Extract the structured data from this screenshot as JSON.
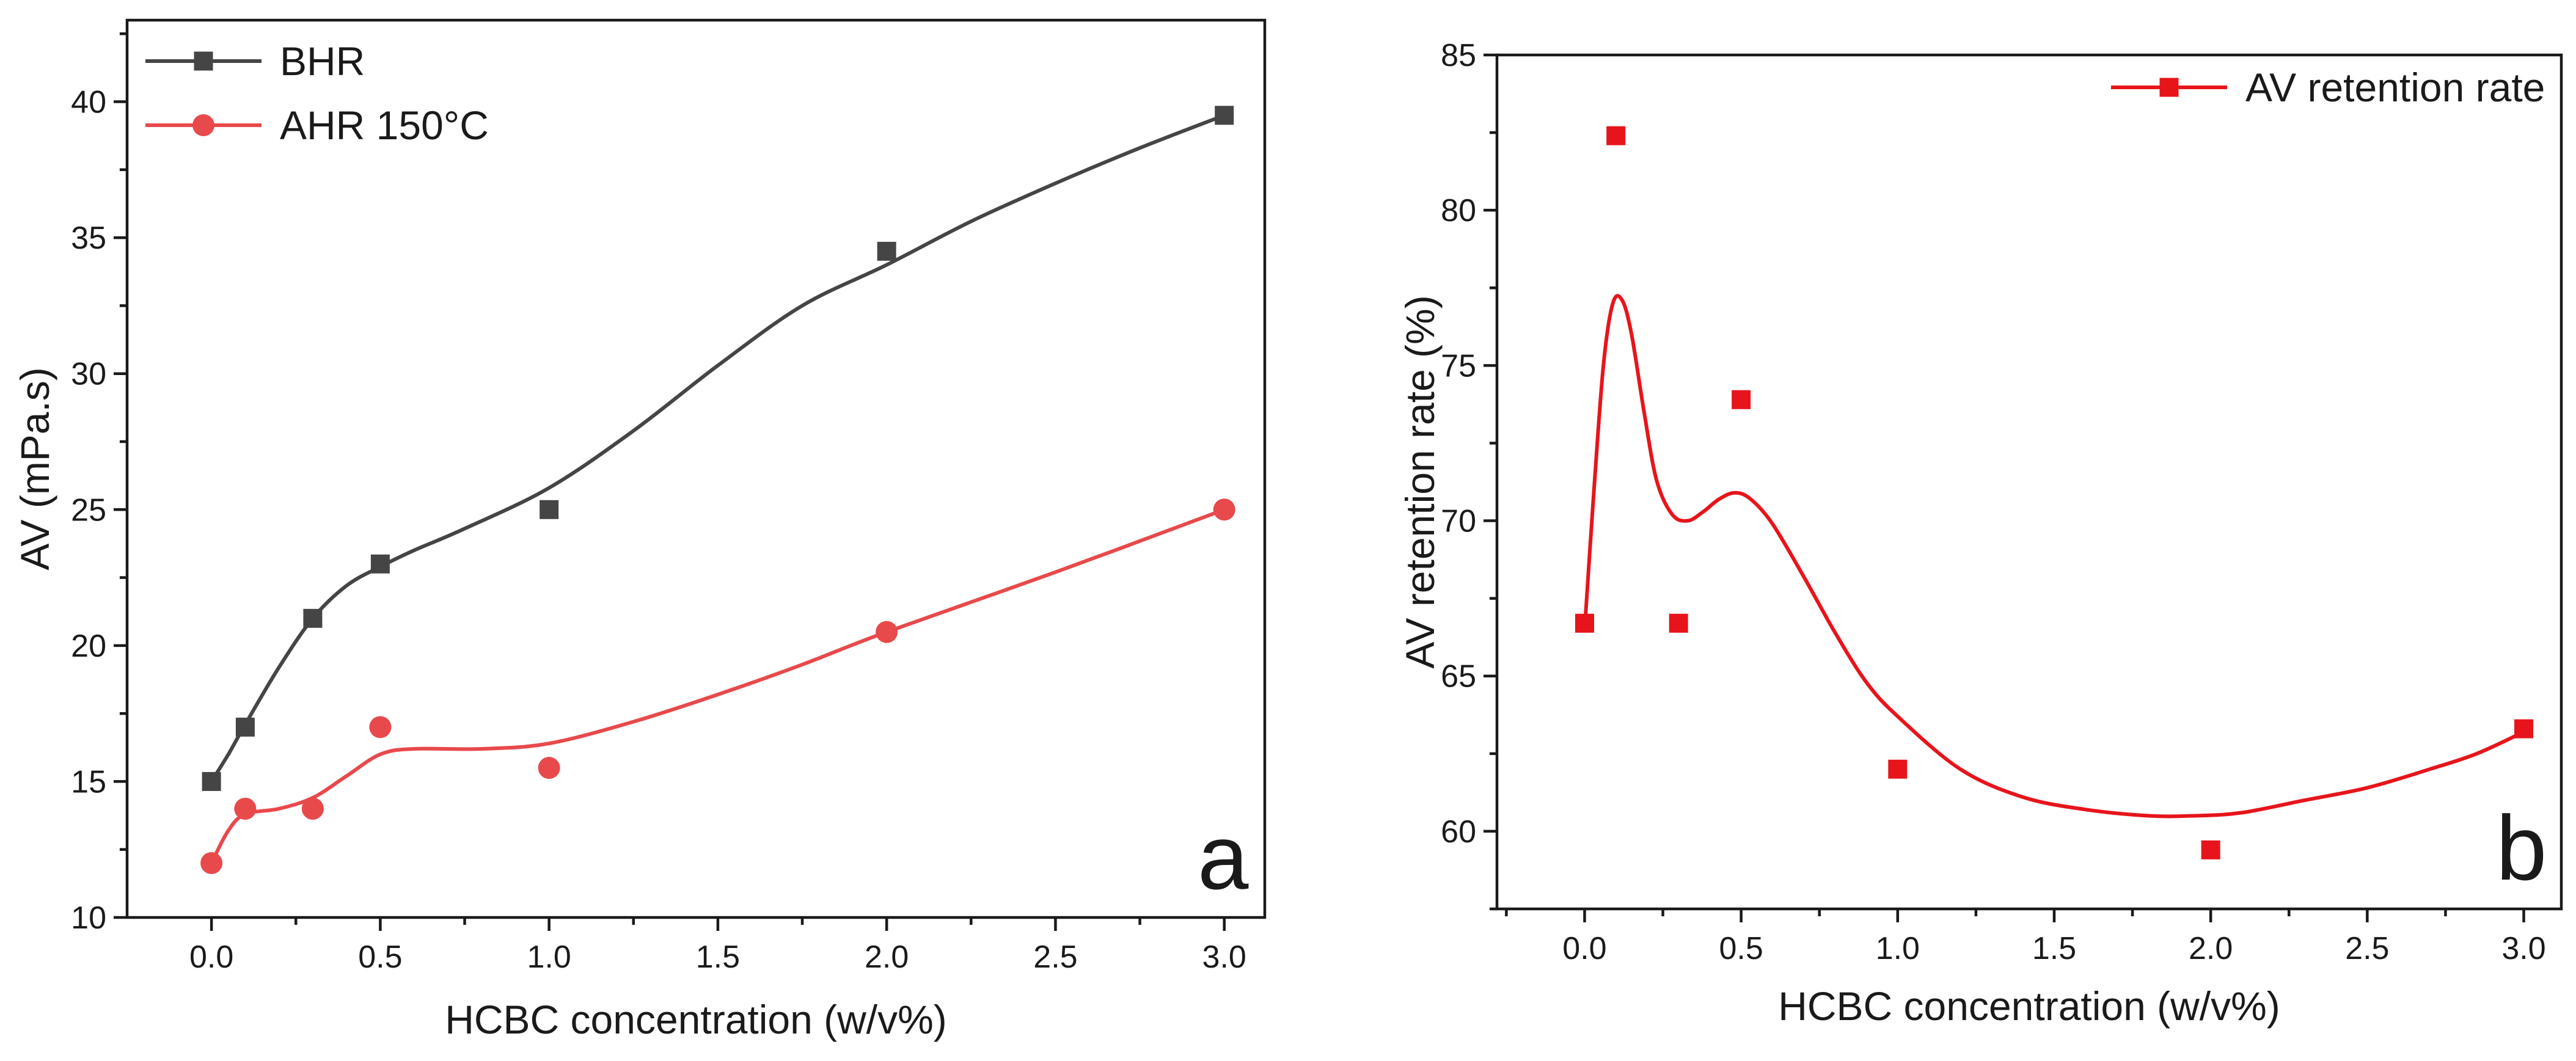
{
  "chart_data": [
    {
      "type": "line",
      "panel": "a",
      "title": "",
      "xlabel": "HCBC concentration (w/v%)",
      "ylabel": "AV (mPa.s)",
      "xlim": [
        -0.25,
        3.12
      ],
      "ylim": [
        10,
        43
      ],
      "xticks": [
        0.0,
        0.5,
        1.0,
        1.5,
        2.0,
        2.5,
        3.0
      ],
      "xtick_labels": [
        "0.0",
        "0.5",
        "1.0",
        "1.5",
        "2.0",
        "2.5",
        "3.0"
      ],
      "yticks": [
        10,
        15,
        20,
        25,
        30,
        35,
        40
      ],
      "ytick_labels": [
        "10",
        "15",
        "20",
        "25",
        "30",
        "35",
        "40"
      ],
      "legend_position": "top-left",
      "grid": false,
      "series": [
        {
          "name": "BHR",
          "marker": "square",
          "color": "#454545",
          "x": [
            0,
            0.1,
            0.3,
            0.5,
            1.0,
            2.0,
            3.0
          ],
          "values": [
            15,
            17,
            21,
            23,
            25,
            34.5,
            39.5
          ],
          "fit": {
            "x": [
              0,
              0.05,
              0.1,
              0.2,
              0.3,
              0.4,
              0.5,
              0.6,
              0.75,
              1.0,
              1.25,
              1.5,
              1.75,
              2.0,
              2.25,
              2.5,
              2.75,
              3.0
            ],
            "y": [
              15,
              16.0,
              17.1,
              19.2,
              21.0,
              22.2,
              22.9,
              23.5,
              24.3,
              25.8,
              27.9,
              30.3,
              32.5,
              34.0,
              35.6,
              37.0,
              38.3,
              39.5
            ]
          }
        },
        {
          "name": "AHR 150°C",
          "marker": "circle",
          "color": "#e8494b",
          "x": [
            0,
            0.1,
            0.3,
            0.5,
            1.0,
            2.0,
            3.0
          ],
          "values": [
            12,
            14,
            14,
            17,
            15.5,
            20.5,
            25
          ],
          "fit": {
            "x": [
              0,
              0.05,
              0.1,
              0.2,
              0.3,
              0.4,
              0.5,
              0.6,
              0.8,
              1.0,
              1.25,
              1.5,
              1.75,
              2.0,
              2.5,
              3.0
            ],
            "y": [
              12,
              13.2,
              13.8,
              14.0,
              14.4,
              15.2,
              16.0,
              16.2,
              16.2,
              16.4,
              17.2,
              18.2,
              19.3,
              20.5,
              22.7,
              25
            ]
          }
        }
      ]
    },
    {
      "type": "scatter",
      "panel": "b",
      "title": "",
      "xlabel": "HCBC concentration (w/v%)",
      "ylabel": "AV retention rate (%)",
      "xlim": [
        -0.28,
        3.12
      ],
      "ylim": [
        57.5,
        85
      ],
      "xticks": [
        0.0,
        0.5,
        1.0,
        1.5,
        2.0,
        2.5,
        3.0
      ],
      "xtick_labels": [
        "0.0",
        "0.5",
        "1.0",
        "1.5",
        "2.0",
        "2.5",
        "3.0"
      ],
      "yticks": [
        60,
        65,
        70,
        75,
        80,
        85
      ],
      "ytick_labels": [
        "60",
        "65",
        "70",
        "75",
        "80",
        "85"
      ],
      "legend_position": "top-right",
      "grid": false,
      "series": [
        {
          "name": "AV retention rate",
          "marker": "square",
          "color": "#e8141b",
          "x": [
            0,
            0.1,
            0.3,
            0.5,
            1.0,
            2.0,
            3.0
          ],
          "values": [
            66.7,
            82.4,
            66.7,
            73.9,
            62.0,
            59.4,
            63.3
          ],
          "fit": {
            "x": [
              0,
              0.03,
              0.06,
              0.09,
              0.12,
              0.15,
              0.19,
              0.23,
              0.28,
              0.33,
              0.38,
              0.43,
              0.48,
              0.53,
              0.6,
              0.7,
              0.8,
              0.9,
              1.0,
              1.2,
              1.4,
              1.6,
              1.8,
              1.95,
              2.1,
              2.3,
              2.5,
              2.7,
              2.85,
              3.0
            ],
            "y": [
              66.5,
              71.0,
              75.0,
              77.0,
              77.1,
              76.0,
              73.5,
              71.3,
              70.2,
              70.0,
              70.3,
              70.7,
              70.9,
              70.7,
              69.9,
              68.2,
              66.4,
              64.8,
              63.7,
              62.0,
              61.1,
              60.7,
              60.5,
              60.5,
              60.6,
              61.0,
              61.4,
              62.0,
              62.5,
              63.2
            ]
          }
        }
      ]
    }
  ]
}
